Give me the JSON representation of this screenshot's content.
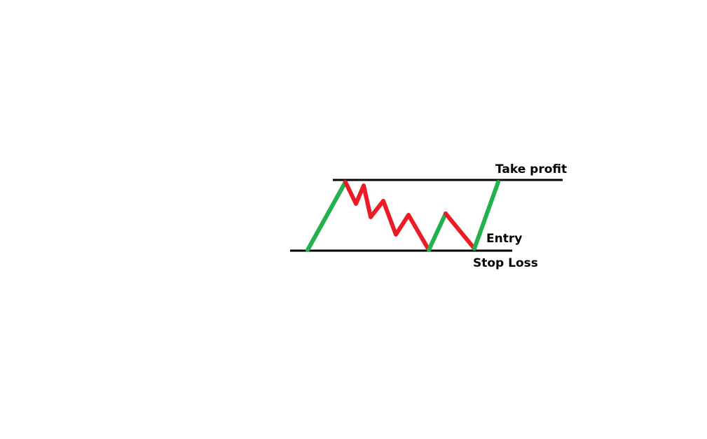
{
  "labels": {
    "take_profit": "Take profit",
    "entry": "Entry",
    "stop_loss": "Stop Loss"
  },
  "colors": {
    "background": "#ffffff",
    "level_line": "#000000",
    "up_move": "#22b14c",
    "down_move": "#ed1c24",
    "text": "#000000"
  }
}
